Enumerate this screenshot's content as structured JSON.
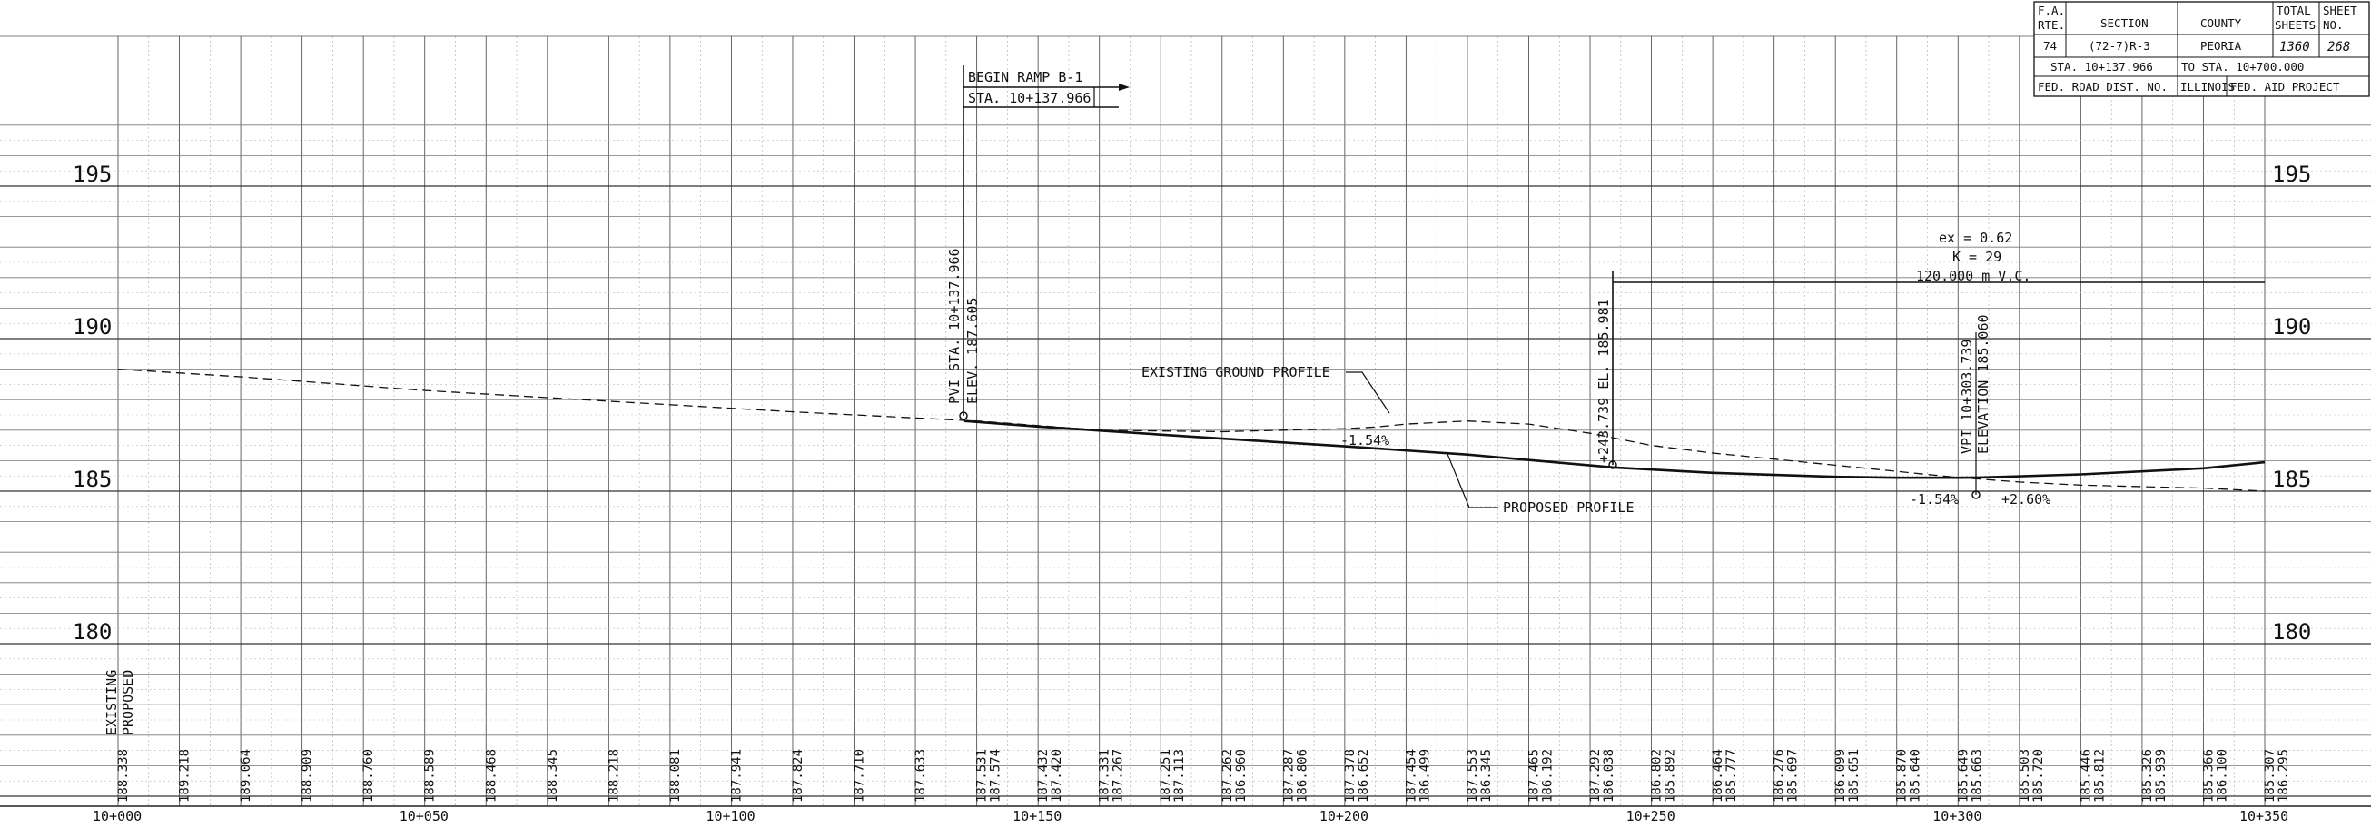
{
  "title_block": {
    "fa_rte_label": "F.A.",
    "fa_rte_label2": "RTE.",
    "section_label": "SECTION",
    "county_label": "COUNTY",
    "total_sheets_label": "TOTAL",
    "total_sheets_label2": "SHEETS",
    "sheet_no_label": "SHEET",
    "sheet_no_label2": "NO.",
    "fa_rte": "74",
    "section": "(72-7)R-3",
    "county": "PEORIA",
    "total_sheets": "1360",
    "sheet_no": "268",
    "station_from": "STA. 10+137.966",
    "station_to": "TO STA. 10+700.000",
    "fed_road_dist": "FED. ROAD DIST. NO.",
    "state": "ILLINOIS",
    "fed_aid_project": "FED. AID PROJECT"
  },
  "begin_ramp": {
    "line1": "BEGIN RAMP B-1",
    "line2": "STA. 10+137.966"
  },
  "annotations": {
    "pvi_sta": "PVI STA. 10+137.966",
    "pvi_elev": "ELEV. 187.605",
    "pc_station": "+243.739 EL. 185.981",
    "vpi_sta": "VPI 10+303.739",
    "vpi_elev": "ELEVATION 185.060",
    "ex_value": "ex = 0.62",
    "k_value": "K = 29",
    "vc_length": "120.000 m  V.C.",
    "existing_ground": "EXISTING GROUND PROFILE",
    "proposed_profile": "PROPOSED PROFILE",
    "grade_1": "-1.54%",
    "grade_2": "-1.54%",
    "grade_3": "+2.60%",
    "existing_label": "EXISTING",
    "proposed_label": "PROPOSED"
  },
  "chart_data": {
    "type": "line",
    "xlabel": "",
    "ylabel": "",
    "xlim": [
      0,
      350
    ],
    "ylim": [
      177.5,
      196.5
    ],
    "grid": true,
    "y_ticks": [
      195,
      190,
      185,
      180
    ],
    "x_ticks": [
      {
        "value": 0,
        "label": "10+000"
      },
      {
        "value": 50,
        "label": "10+050"
      },
      {
        "value": 100,
        "label": "10+100"
      },
      {
        "value": 150,
        "label": "10+150"
      },
      {
        "value": 200,
        "label": "10+200"
      },
      {
        "value": 250,
        "label": "10+250"
      },
      {
        "value": 300,
        "label": "10+300"
      },
      {
        "value": 350,
        "label": "10+350"
      }
    ],
    "elevation_table": [
      {
        "x": 0,
        "existing": "188.338",
        "proposed": ""
      },
      {
        "x": 10,
        "existing": "189.218",
        "proposed": ""
      },
      {
        "x": 20,
        "existing": "189.064",
        "proposed": ""
      },
      {
        "x": 30,
        "existing": "188.909",
        "proposed": ""
      },
      {
        "x": 40,
        "existing": "188.760",
        "proposed": ""
      },
      {
        "x": 50,
        "existing": "188.589",
        "proposed": ""
      },
      {
        "x": 60,
        "existing": "188.468",
        "proposed": ""
      },
      {
        "x": 70,
        "existing": "188.345",
        "proposed": ""
      },
      {
        "x": 80,
        "existing": "188.218",
        "proposed": ""
      },
      {
        "x": 90,
        "existing": "188.081",
        "proposed": ""
      },
      {
        "x": 100,
        "existing": "187.941",
        "proposed": ""
      },
      {
        "x": 110,
        "existing": "187.824",
        "proposed": ""
      },
      {
        "x": 120,
        "existing": "187.710",
        "proposed": ""
      },
      {
        "x": 130,
        "existing": "187.633",
        "proposed": ""
      },
      {
        "x": 140,
        "existing": "187.531",
        "proposed": "187.574"
      },
      {
        "x": 150,
        "existing": "187.432",
        "proposed": "187.420"
      },
      {
        "x": 160,
        "existing": "187.331",
        "proposed": "187.267"
      },
      {
        "x": 170,
        "existing": "187.251",
        "proposed": "187.113"
      },
      {
        "x": 180,
        "existing": "187.262",
        "proposed": "186.960"
      },
      {
        "x": 190,
        "existing": "187.287",
        "proposed": "186.806"
      },
      {
        "x": 200,
        "existing": "187.378",
        "proposed": "186.652"
      },
      {
        "x": 210,
        "existing": "187.454",
        "proposed": "186.499"
      },
      {
        "x": 220,
        "existing": "187.553",
        "proposed": "186.345"
      },
      {
        "x": 230,
        "existing": "187.465",
        "proposed": "186.192"
      },
      {
        "x": 240,
        "existing": "187.292",
        "proposed": "186.038"
      },
      {
        "x": 250,
        "existing": "186.802",
        "proposed": "185.892"
      },
      {
        "x": 260,
        "existing": "186.464",
        "proposed": "185.777"
      },
      {
        "x": 270,
        "existing": "186.276",
        "proposed": "185.697"
      },
      {
        "x": 280,
        "existing": "186.099",
        "proposed": "185.651"
      },
      {
        "x": 290,
        "existing": "185.870",
        "proposed": "185.640"
      },
      {
        "x": 300,
        "existing": "185.649",
        "proposed": "185.663"
      },
      {
        "x": 310,
        "existing": "185.503",
        "proposed": "185.720"
      },
      {
        "x": 320,
        "existing": "185.446",
        "proposed": "185.812"
      },
      {
        "x": 330,
        "existing": "185.326",
        "proposed": "185.939"
      },
      {
        "x": 340,
        "existing": "185.366",
        "proposed": "186.100"
      },
      {
        "x": 350,
        "existing": "185.307",
        "proposed": "186.295"
      }
    ],
    "series": [
      {
        "name": "EXISTING GROUND PROFILE",
        "style": "dashed",
        "points": [
          [
            0,
            189.0
          ],
          [
            20,
            188.75
          ],
          [
            50,
            188.3
          ],
          [
            80,
            187.95
          ],
          [
            110,
            187.6
          ],
          [
            140,
            187.3
          ],
          [
            160,
            187.0
          ],
          [
            180,
            186.95
          ],
          [
            200,
            187.05
          ],
          [
            205,
            187.1
          ],
          [
            210,
            187.2
          ],
          [
            220,
            187.3
          ],
          [
            230,
            187.2
          ],
          [
            240,
            186.9
          ],
          [
            250,
            186.5
          ],
          [
            260,
            186.25
          ],
          [
            270,
            186.05
          ],
          [
            280,
            185.85
          ],
          [
            290,
            185.65
          ],
          [
            300,
            185.45
          ],
          [
            310,
            185.3
          ],
          [
            320,
            185.2
          ],
          [
            330,
            185.15
          ],
          [
            340,
            185.1
          ],
          [
            350,
            185.0
          ]
        ]
      },
      {
        "name": "PROPOSED PROFILE",
        "style": "solid",
        "points": [
          [
            137.966,
            187.3
          ],
          [
            150,
            187.12
          ],
          [
            175,
            186.79
          ],
          [
            200,
            186.47
          ],
          [
            220,
            186.2
          ],
          [
            243.739,
            185.78
          ],
          [
            260,
            185.6
          ],
          [
            280,
            185.47
          ],
          [
            290,
            185.44
          ],
          [
            300,
            185.44
          ],
          [
            303.739,
            185.45
          ],
          [
            320,
            185.55
          ],
          [
            340,
            185.75
          ],
          [
            350,
            185.95
          ]
        ]
      }
    ]
  }
}
